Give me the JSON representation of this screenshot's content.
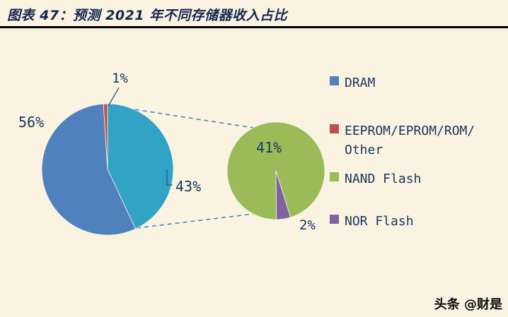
{
  "page": {
    "title": "图表 47：预测 2021 年不同存储器收入占比",
    "watermark": "头条 @财是"
  },
  "colors": {
    "background": "#FAF3E2",
    "title_text": "#15264F",
    "label_text": "#17375E",
    "connector": "#4F81BD",
    "leader": "#2F5597"
  },
  "legend": {
    "position": "right",
    "items": [
      {
        "name": "DRAM",
        "line1": "DRAM",
        "color": "#4F81BD"
      },
      {
        "name": "EEPROM/EPROM/ROM/Other",
        "line1": "EEPROM/EPROM/ROM/",
        "line2": "Other",
        "color": "#C0504D"
      },
      {
        "name": "NAND Flash",
        "line1": "NAND Flash",
        "color": "#9BBB59"
      },
      {
        "name": "NOR Flash",
        "line1": "NOR Flash",
        "color": "#8064A2"
      }
    ]
  },
  "chart_data": {
    "type": "pie",
    "subtype": "pie-of-pie",
    "title": "预测 2021 年不同存储器收入占比",
    "unit": "%",
    "legend_position": "right",
    "main_pie": {
      "slices": [
        {
          "label": "NAND Flash + NOR Flash (expanded group)",
          "value": 43,
          "display": "43%",
          "color": "#31A3C6"
        },
        {
          "label": "DRAM",
          "value": 56,
          "display": "56%",
          "color": "#4F81BD"
        },
        {
          "label": "EEPROM/EPROM/ROM/Other",
          "value": 1,
          "display": "1%",
          "color": "#C0504D"
        }
      ]
    },
    "secondary_pie": {
      "slices": [
        {
          "label": "NAND Flash",
          "value": 41,
          "display": "41%",
          "color": "#9BBB59"
        },
        {
          "label": "NOR Flash",
          "value": 2,
          "display": "2%",
          "color": "#8064A2"
        }
      ]
    }
  }
}
